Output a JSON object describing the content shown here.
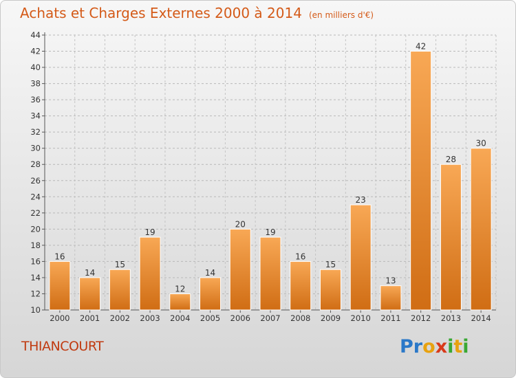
{
  "header": {
    "title": "Achats et Charges Externes 2000 à 2014",
    "unit": "(en milliers d'€)"
  },
  "commune": "THIANCOURT",
  "logo": {
    "text": "Proxiti",
    "letters": [
      "P",
      "r",
      "o",
      "x",
      "i",
      "t",
      "i"
    ]
  },
  "colors": {
    "bar_light": "#f8a855",
    "bar_dark": "#d06d14",
    "title": "#d45a18",
    "commune": "#c03a10"
  },
  "chart_data": {
    "type": "bar",
    "title": "Achats et Charges Externes 2000 à 2014",
    "subtitle": "(en milliers d'€)",
    "categories": [
      "2000",
      "2001",
      "2002",
      "2003",
      "2004",
      "2005",
      "2006",
      "2007",
      "2008",
      "2009",
      "2010",
      "2011",
      "2012",
      "2013",
      "2014"
    ],
    "values": [
      16,
      14,
      15,
      19,
      12,
      14,
      20,
      19,
      16,
      15,
      23,
      13,
      42,
      28,
      30
    ],
    "ylim": [
      10,
      44
    ],
    "yticks": [
      10,
      12,
      14,
      16,
      18,
      20,
      22,
      24,
      26,
      28,
      30,
      32,
      34,
      36,
      38,
      40,
      42,
      44
    ],
    "grid": "horizontal dashed",
    "data_labels": true
  }
}
